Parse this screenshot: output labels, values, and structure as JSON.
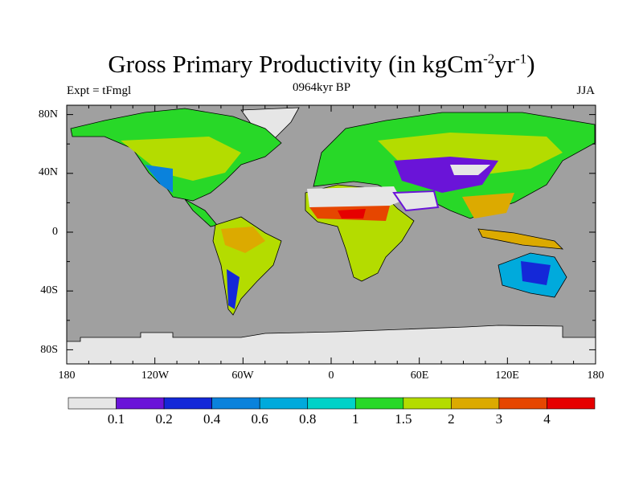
{
  "title": {
    "main": "Gross Primary Productivity (in kgCm",
    "sup1": "-2",
    "mid": "yr",
    "sup2": "-1",
    "end": ")"
  },
  "subtitle": "0964kyr BP",
  "left_label": "Expt = tFmgl",
  "right_label": "JJA",
  "lat_ticks": [
    "80N",
    "40N",
    "0",
    "40S",
    "80S"
  ],
  "lon_ticks": [
    "180",
    "120W",
    "60W",
    "0",
    "60E",
    "120E",
    "180"
  ],
  "colorbar": {
    "colors": [
      "#e6e6e6",
      "#6a14d8",
      "#1428d8",
      "#0a82dc",
      "#00aadc",
      "#00d2c8",
      "#28d828",
      "#b4dc00",
      "#dcaa00",
      "#e64600",
      "#e60000"
    ],
    "labels": [
      "0.1",
      "0.2",
      "0.4",
      "0.6",
      "0.8",
      "1",
      "1.5",
      "2",
      "3",
      "4"
    ]
  },
  "colors": {
    "ocean": "#a0a0a0",
    "ice": "#e6e6e6"
  }
}
